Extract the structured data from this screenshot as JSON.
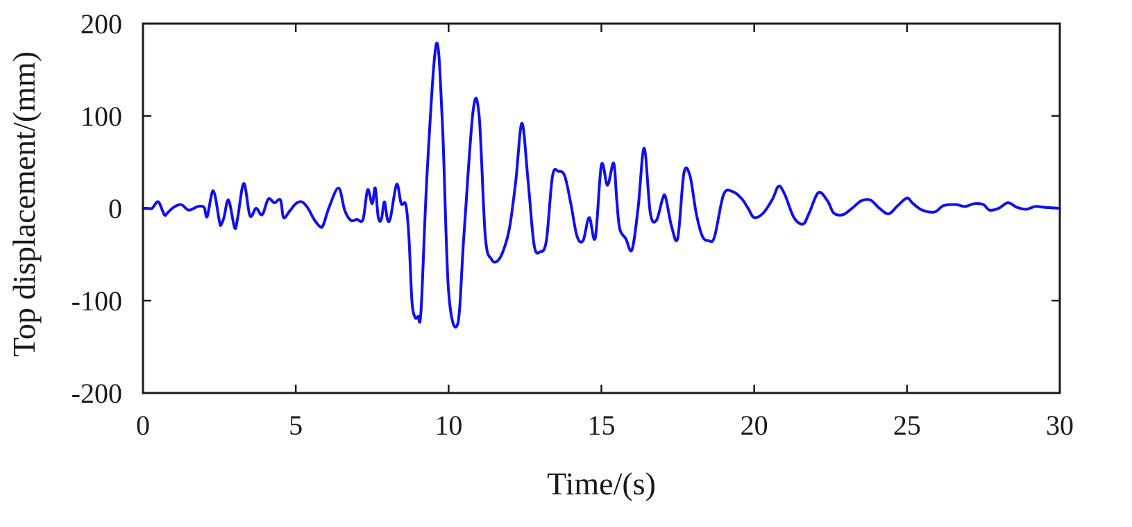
{
  "chart_data": {
    "type": "line",
    "title": "",
    "xlabel": "Time/(s)",
    "ylabel": "Top displacement/(mm)",
    "xlim": [
      0,
      30
    ],
    "ylim": [
      -200,
      200
    ],
    "xticks": [
      0,
      5,
      10,
      15,
      20,
      25,
      30
    ],
    "yticks": [
      -200,
      -100,
      0,
      100,
      200
    ],
    "xtick_labels": [
      "0",
      "5",
      "10",
      "15",
      "20",
      "25",
      "30"
    ],
    "ytick_labels": [
      "-200",
      "-100",
      "0",
      "100",
      "200"
    ],
    "grid": false,
    "legend": false,
    "colors": {
      "line": "#1010ee",
      "axes": "#1a1a1a"
    },
    "series": [
      {
        "x": [
          0.0,
          0.15,
          0.3,
          0.5,
          0.7,
          0.8,
          1.0,
          1.25,
          1.5,
          1.8,
          2.0,
          2.1,
          2.3,
          2.5,
          2.55,
          2.65,
          2.8,
          3.0,
          3.1,
          3.3,
          3.5,
          3.7,
          3.9,
          4.1,
          4.3,
          4.5,
          4.6,
          4.8,
          5.0,
          5.2,
          5.4,
          5.6,
          5.8,
          5.9,
          6.1,
          6.4,
          6.6,
          6.8,
          7.0,
          7.2,
          7.35,
          7.5,
          7.6,
          7.7,
          7.8,
          7.9,
          8.0,
          8.1,
          8.3,
          8.45,
          8.6,
          8.7,
          8.8,
          8.9,
          9.0,
          9.1,
          9.3,
          9.6,
          9.8,
          10.0,
          10.3,
          10.5,
          10.8,
          11.0,
          11.2,
          11.4,
          11.6,
          11.8,
          12.0,
          12.2,
          12.4,
          12.6,
          12.8,
          13.0,
          13.2,
          13.4,
          13.6,
          13.8,
          14.0,
          14.2,
          14.4,
          14.6,
          14.8,
          15.0,
          15.2,
          15.4,
          15.5,
          15.6,
          15.8,
          16.0,
          16.2,
          16.4,
          16.6,
          16.8,
          17.0,
          17.1,
          17.3,
          17.5,
          17.7,
          17.9,
          18.1,
          18.3,
          18.5,
          18.7,
          19.0,
          19.3,
          19.6,
          19.8,
          20.0,
          20.3,
          20.6,
          20.8,
          21.0,
          21.3,
          21.6,
          21.8,
          22.1,
          22.4,
          22.6,
          22.9,
          23.2,
          23.5,
          23.8,
          24.1,
          24.4,
          24.7,
          25.0,
          25.2,
          25.5,
          25.9,
          26.2,
          26.6,
          26.9,
          27.2,
          27.5,
          27.7,
          28.0,
          28.3,
          28.6,
          28.9,
          29.2,
          29.5,
          30.0
        ],
        "y": [
          0,
          0,
          0,
          7,
          -7,
          -5,
          1,
          4,
          -2,
          2,
          1,
          -9,
          19,
          -14,
          -18,
          -10,
          9,
          -21,
          -10,
          27,
          -8,
          0,
          -7,
          10,
          6,
          9,
          -10,
          -3,
          5,
          7,
          0,
          -12,
          -20,
          -18,
          2,
          22,
          -2,
          -13,
          -12,
          -12,
          20,
          5,
          22,
          -10,
          -12,
          7,
          -12,
          -10,
          26,
          5,
          4,
          -30,
          -100,
          -118,
          -117,
          -110,
          40,
          178,
          90,
          -90,
          -125,
          -30,
          105,
          100,
          -30,
          -55,
          -57,
          -45,
          -20,
          30,
          92,
          30,
          -40,
          -47,
          -35,
          35,
          40,
          35,
          5,
          -30,
          -35,
          -10,
          -32,
          47,
          25,
          49,
          10,
          -22,
          -33,
          -45,
          0,
          65,
          -5,
          -13,
          10,
          12,
          -20,
          -32,
          38,
          35,
          -5,
          -30,
          -35,
          -31,
          15,
          18,
          10,
          0,
          -10,
          -5,
          10,
          24,
          15,
          -10,
          -17,
          -5,
          17,
          8,
          -5,
          -7,
          0,
          8,
          9,
          0,
          -6,
          3,
          11,
          5,
          -2,
          -4,
          3,
          4,
          2,
          5,
          4,
          -2,
          0,
          6,
          1,
          -1,
          2,
          1,
          0
        ]
      }
    ]
  }
}
